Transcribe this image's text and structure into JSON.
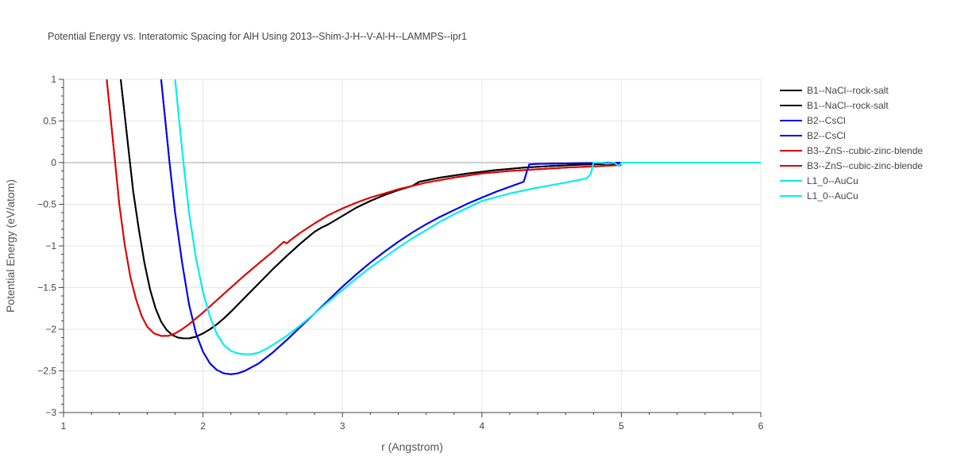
{
  "chart_data": {
    "type": "line",
    "title": "Potential Energy vs. Interatomic Spacing for AlH Using 2013--Shim-J-H--V-Al-H--LAMMPS--ipr1",
    "xlabel": "r (Angstrom)",
    "ylabel": "Potential Energy (eV/atom)",
    "xlim": [
      1,
      6
    ],
    "ylim": [
      -3,
      1
    ],
    "xticks": [
      "1",
      "2",
      "3",
      "4",
      "5",
      "6"
    ],
    "yticks": [
      "1",
      "0.5",
      "0",
      "−0.5",
      "−1",
      "−1.5",
      "−2",
      "−2.5",
      "−3"
    ],
    "grid": true,
    "legend_position": "right",
    "series": [
      {
        "name": "B1--NaCl--rock-salt",
        "color": "#000000",
        "x": [
          1.41,
          1.44,
          1.47,
          1.5,
          1.54,
          1.58,
          1.62,
          1.66,
          1.7,
          1.74,
          1.78,
          1.82,
          1.86,
          1.9,
          1.95,
          2.0,
          2.05,
          2.1,
          2.15,
          2.2,
          2.3,
          2.4,
          2.5,
          2.6,
          2.7,
          2.8,
          2.85,
          2.9,
          3.0,
          3.1,
          3.2,
          3.3,
          3.4,
          3.5,
          3.53,
          3.55,
          3.7,
          3.9,
          4.1,
          4.3,
          4.5,
          4.7,
          4.9,
          5.0
        ],
        "y": [
          1.0,
          0.55,
          0.1,
          -0.35,
          -0.8,
          -1.2,
          -1.52,
          -1.75,
          -1.91,
          -2.01,
          -2.07,
          -2.1,
          -2.11,
          -2.11,
          -2.09,
          -2.05,
          -2.0,
          -1.94,
          -1.87,
          -1.79,
          -1.62,
          -1.45,
          -1.28,
          -1.12,
          -0.97,
          -0.83,
          -0.78,
          -0.74,
          -0.64,
          -0.54,
          -0.46,
          -0.39,
          -0.33,
          -0.28,
          -0.25,
          -0.23,
          -0.18,
          -0.13,
          -0.09,
          -0.06,
          -0.04,
          -0.025,
          -0.015,
          -0.01
        ]
      },
      {
        "name": "B1--NaCl--rock-salt",
        "color": "#000000",
        "x": [
          1.41,
          1.44,
          1.47,
          1.5,
          1.54,
          1.58,
          1.62,
          1.66,
          1.7,
          1.74,
          1.78,
          1.82,
          1.86,
          1.9,
          1.95,
          2.0,
          2.05,
          2.1,
          2.15,
          2.2,
          2.3,
          2.4,
          2.5,
          2.6,
          2.7,
          2.8,
          2.85,
          2.9,
          3.0,
          3.1,
          3.2,
          3.3,
          3.4,
          3.5,
          3.53,
          3.55,
          3.7,
          3.9,
          4.1,
          4.3,
          4.5,
          4.7,
          4.9,
          5.0
        ],
        "y": [
          1.0,
          0.55,
          0.1,
          -0.35,
          -0.8,
          -1.2,
          -1.52,
          -1.75,
          -1.91,
          -2.01,
          -2.07,
          -2.1,
          -2.11,
          -2.11,
          -2.09,
          -2.05,
          -2.0,
          -1.94,
          -1.87,
          -1.79,
          -1.62,
          -1.45,
          -1.28,
          -1.12,
          -0.97,
          -0.83,
          -0.78,
          -0.74,
          -0.64,
          -0.54,
          -0.46,
          -0.39,
          -0.33,
          -0.28,
          -0.25,
          -0.23,
          -0.18,
          -0.13,
          -0.09,
          -0.06,
          -0.04,
          -0.025,
          -0.015,
          -0.01
        ]
      },
      {
        "name": "B2--CsCl",
        "color": "#0000ee",
        "x": [
          1.7,
          1.73,
          1.76,
          1.8,
          1.85,
          1.9,
          1.95,
          2.0,
          2.05,
          2.1,
          2.15,
          2.2,
          2.25,
          2.3,
          2.4,
          2.5,
          2.6,
          2.7,
          2.8,
          2.9,
          3.0,
          3.1,
          3.2,
          3.3,
          3.4,
          3.5,
          3.6,
          3.7,
          3.8,
          3.9,
          4.0,
          4.1,
          4.2,
          4.3,
          4.32,
          4.34,
          4.4,
          4.6,
          4.8,
          5.0
        ],
        "y": [
          1.0,
          0.5,
          0.0,
          -0.6,
          -1.2,
          -1.7,
          -2.05,
          -2.27,
          -2.41,
          -2.49,
          -2.53,
          -2.54,
          -2.53,
          -2.5,
          -2.41,
          -2.28,
          -2.13,
          -1.97,
          -1.81,
          -1.65,
          -1.49,
          -1.34,
          -1.2,
          -1.07,
          -0.95,
          -0.84,
          -0.74,
          -0.65,
          -0.57,
          -0.49,
          -0.42,
          -0.35,
          -0.29,
          -0.23,
          -0.12,
          -0.02,
          -0.015,
          -0.01,
          -0.005,
          0.0
        ]
      },
      {
        "name": "B2--CsCl",
        "color": "#0000ee",
        "x": [
          1.7,
          1.73,
          1.76,
          1.8,
          1.85,
          1.9,
          1.95,
          2.0,
          2.05,
          2.1,
          2.15,
          2.2,
          2.25,
          2.3,
          2.4,
          2.5,
          2.6,
          2.7,
          2.8,
          2.9,
          3.0,
          3.1,
          3.2,
          3.3,
          3.4,
          3.5,
          3.6,
          3.7,
          3.8,
          3.9,
          4.0,
          4.1,
          4.2,
          4.3,
          4.32,
          4.34,
          4.4,
          4.6,
          4.8,
          5.0
        ],
        "y": [
          1.0,
          0.5,
          0.0,
          -0.6,
          -1.2,
          -1.7,
          -2.05,
          -2.27,
          -2.41,
          -2.49,
          -2.53,
          -2.54,
          -2.53,
          -2.5,
          -2.41,
          -2.28,
          -2.13,
          -1.97,
          -1.81,
          -1.65,
          -1.49,
          -1.34,
          -1.2,
          -1.07,
          -0.95,
          -0.84,
          -0.74,
          -0.65,
          -0.57,
          -0.49,
          -0.42,
          -0.35,
          -0.29,
          -0.23,
          -0.12,
          -0.02,
          -0.015,
          -0.01,
          -0.005,
          0.0
        ]
      },
      {
        "name": "B3--ZnS--cubic-zinc-blende",
        "color": "#dd0000",
        "x": [
          1.31,
          1.34,
          1.37,
          1.4,
          1.44,
          1.48,
          1.52,
          1.56,
          1.6,
          1.65,
          1.7,
          1.75,
          1.8,
          1.85,
          1.9,
          1.95,
          2.0,
          2.1,
          2.2,
          2.3,
          2.4,
          2.5,
          2.58,
          2.6,
          2.62,
          2.7,
          2.8,
          2.9,
          3.0,
          3.1,
          3.2,
          3.3,
          3.4,
          3.5,
          3.6,
          3.8,
          4.0,
          4.2,
          4.4,
          4.6,
          4.8,
          5.0
        ],
        "y": [
          1.0,
          0.5,
          0.0,
          -0.5,
          -1.0,
          -1.38,
          -1.64,
          -1.84,
          -1.97,
          -2.05,
          -2.08,
          -2.08,
          -2.05,
          -2.0,
          -1.94,
          -1.87,
          -1.8,
          -1.65,
          -1.5,
          -1.35,
          -1.21,
          -1.07,
          -0.95,
          -0.97,
          -0.94,
          -0.84,
          -0.73,
          -0.63,
          -0.55,
          -0.48,
          -0.42,
          -0.37,
          -0.32,
          -0.28,
          -0.24,
          -0.18,
          -0.13,
          -0.1,
          -0.08,
          -0.06,
          -0.045,
          -0.03
        ]
      },
      {
        "name": "B3--ZnS--cubic-zinc-blende",
        "color": "#dd0000",
        "x": [
          1.31,
          1.34,
          1.37,
          1.4,
          1.44,
          1.48,
          1.52,
          1.56,
          1.6,
          1.65,
          1.7,
          1.75,
          1.8,
          1.85,
          1.9,
          1.95,
          2.0,
          2.1,
          2.2,
          2.3,
          2.4,
          2.5,
          2.58,
          2.6,
          2.62,
          2.7,
          2.8,
          2.9,
          3.0,
          3.1,
          3.2,
          3.3,
          3.4,
          3.5,
          3.6,
          3.8,
          4.0,
          4.2,
          4.4,
          4.6,
          4.8,
          5.0
        ],
        "y": [
          1.0,
          0.5,
          0.0,
          -0.5,
          -1.0,
          -1.38,
          -1.64,
          -1.84,
          -1.97,
          -2.05,
          -2.08,
          -2.08,
          -2.05,
          -2.0,
          -1.94,
          -1.87,
          -1.8,
          -1.65,
          -1.5,
          -1.35,
          -1.21,
          -1.07,
          -0.95,
          -0.97,
          -0.94,
          -0.84,
          -0.73,
          -0.63,
          -0.55,
          -0.48,
          -0.42,
          -0.37,
          -0.32,
          -0.28,
          -0.24,
          -0.18,
          -0.13,
          -0.1,
          -0.08,
          -0.06,
          -0.045,
          -0.03
        ]
      },
      {
        "name": "L1_0--AuCu",
        "color": "#00eeee",
        "x": [
          1.8,
          1.83,
          1.86,
          1.9,
          1.95,
          2.0,
          2.05,
          2.1,
          2.15,
          2.2,
          2.25,
          2.3,
          2.35,
          2.4,
          2.45,
          2.5,
          2.6,
          2.7,
          2.8,
          2.9,
          3.0,
          3.1,
          3.2,
          3.3,
          3.4,
          3.5,
          3.6,
          3.7,
          3.8,
          3.9,
          4.0,
          4.2,
          4.4,
          4.6,
          4.75,
          4.78,
          4.8,
          4.85,
          4.9,
          4.95,
          4.98,
          5.0,
          5.5,
          6.0
        ],
        "y": [
          1.0,
          0.5,
          0.0,
          -0.6,
          -1.15,
          -1.55,
          -1.85,
          -2.06,
          -2.19,
          -2.26,
          -2.29,
          -2.3,
          -2.3,
          -2.28,
          -2.24,
          -2.19,
          -2.08,
          -1.95,
          -1.81,
          -1.67,
          -1.53,
          -1.39,
          -1.26,
          -1.14,
          -1.02,
          -0.91,
          -0.81,
          -0.71,
          -0.62,
          -0.54,
          -0.46,
          -0.37,
          -0.3,
          -0.24,
          -0.19,
          -0.14,
          0.0,
          0.0,
          -0.01,
          0.0,
          -0.04,
          0.0,
          0.0,
          0.0
        ]
      },
      {
        "name": "L1_0--AuCu",
        "color": "#00eeee",
        "x": [
          1.8,
          1.83,
          1.86,
          1.9,
          1.95,
          2.0,
          2.05,
          2.1,
          2.15,
          2.2,
          2.25,
          2.3,
          2.35,
          2.4,
          2.45,
          2.5,
          2.6,
          2.7,
          2.8,
          2.9,
          3.0,
          3.1,
          3.2,
          3.3,
          3.4,
          3.5,
          3.6,
          3.7,
          3.8,
          3.9,
          4.0,
          4.2,
          4.4,
          4.6,
          4.75,
          4.78,
          4.8,
          4.85,
          4.9,
          4.95,
          4.98,
          5.0,
          5.5,
          6.0
        ],
        "y": [
          1.0,
          0.5,
          0.0,
          -0.6,
          -1.15,
          -1.55,
          -1.85,
          -2.06,
          -2.19,
          -2.26,
          -2.29,
          -2.3,
          -2.3,
          -2.28,
          -2.24,
          -2.19,
          -2.08,
          -1.95,
          -1.81,
          -1.67,
          -1.53,
          -1.39,
          -1.26,
          -1.14,
          -1.02,
          -0.91,
          -0.81,
          -0.71,
          -0.62,
          -0.54,
          -0.46,
          -0.37,
          -0.3,
          -0.24,
          -0.19,
          -0.14,
          0.0,
          0.0,
          -0.01,
          0.0,
          -0.04,
          0.0,
          0.0,
          0.0
        ]
      }
    ]
  }
}
